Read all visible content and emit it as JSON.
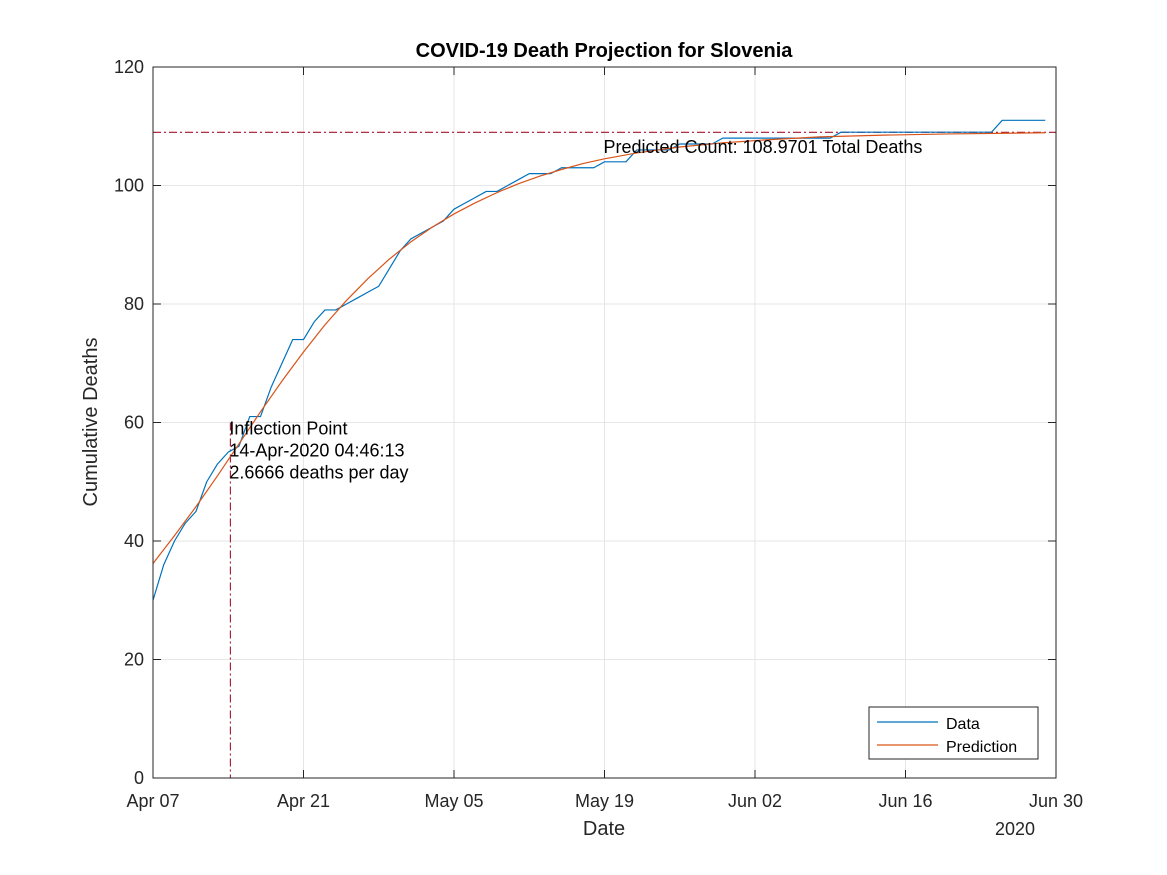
{
  "chart_data": {
    "type": "line",
    "title": "COVID-19 Death Projection for Slovenia",
    "xlabel": "Date",
    "ylabel": "Cumulative Deaths",
    "year_label": "2020",
    "xlim": [
      "2020-04-07",
      "2020-06-30"
    ],
    "ylim": [
      0,
      120
    ],
    "grid": true,
    "legend_position": "bottom-right",
    "x_ticks": [
      {
        "date": "2020-04-07",
        "label": "Apr 07"
      },
      {
        "date": "2020-04-21",
        "label": "Apr 21"
      },
      {
        "date": "2020-05-05",
        "label": "May 05"
      },
      {
        "date": "2020-05-19",
        "label": "May 19"
      },
      {
        "date": "2020-06-02",
        "label": "Jun 02"
      },
      {
        "date": "2020-06-16",
        "label": "Jun 16"
      },
      {
        "date": "2020-06-30",
        "label": "Jun 30"
      }
    ],
    "y_ticks": [
      0,
      20,
      40,
      60,
      80,
      100,
      120
    ],
    "series": [
      {
        "name": "Data",
        "color": "#0072BD",
        "style": "step",
        "points": [
          [
            "2020-04-07",
            30
          ],
          [
            "2020-04-08",
            36
          ],
          [
            "2020-04-09",
            40
          ],
          [
            "2020-04-10",
            43
          ],
          [
            "2020-04-11",
            45
          ],
          [
            "2020-04-12",
            50
          ],
          [
            "2020-04-13",
            53
          ],
          [
            "2020-04-14",
            55
          ],
          [
            "2020-04-15",
            56
          ],
          [
            "2020-04-16",
            61
          ],
          [
            "2020-04-17",
            61
          ],
          [
            "2020-04-18",
            66
          ],
          [
            "2020-04-19",
            70
          ],
          [
            "2020-04-20",
            74
          ],
          [
            "2020-04-21",
            74
          ],
          [
            "2020-04-22",
            77
          ],
          [
            "2020-04-23",
            79
          ],
          [
            "2020-04-24",
            79
          ],
          [
            "2020-04-25",
            80
          ],
          [
            "2020-04-26",
            81
          ],
          [
            "2020-04-27",
            82
          ],
          [
            "2020-04-28",
            83
          ],
          [
            "2020-04-29",
            86
          ],
          [
            "2020-04-30",
            89
          ],
          [
            "2020-05-01",
            91
          ],
          [
            "2020-05-02",
            92
          ],
          [
            "2020-05-03",
            93
          ],
          [
            "2020-05-04",
            94
          ],
          [
            "2020-05-05",
            96
          ],
          [
            "2020-05-06",
            97
          ],
          [
            "2020-05-07",
            98
          ],
          [
            "2020-05-08",
            99
          ],
          [
            "2020-05-09",
            99
          ],
          [
            "2020-05-10",
            100
          ],
          [
            "2020-05-11",
            101
          ],
          [
            "2020-05-12",
            102
          ],
          [
            "2020-05-13",
            102
          ],
          [
            "2020-05-14",
            102
          ],
          [
            "2020-05-15",
            103
          ],
          [
            "2020-05-16",
            103
          ],
          [
            "2020-05-17",
            103
          ],
          [
            "2020-05-18",
            103
          ],
          [
            "2020-05-19",
            104
          ],
          [
            "2020-05-20",
            104
          ],
          [
            "2020-05-21",
            104
          ],
          [
            "2020-05-22",
            106
          ],
          [
            "2020-05-23",
            106
          ],
          [
            "2020-05-24",
            106
          ],
          [
            "2020-05-25",
            106
          ],
          [
            "2020-05-26",
            107
          ],
          [
            "2020-05-27",
            107
          ],
          [
            "2020-05-28",
            107
          ],
          [
            "2020-05-29",
            107
          ],
          [
            "2020-05-30",
            108
          ],
          [
            "2020-05-31",
            108
          ],
          [
            "2020-06-01",
            108
          ],
          [
            "2020-06-02",
            108
          ],
          [
            "2020-06-03",
            108
          ],
          [
            "2020-06-04",
            108
          ],
          [
            "2020-06-05",
            108
          ],
          [
            "2020-06-06",
            108
          ],
          [
            "2020-06-07",
            108
          ],
          [
            "2020-06-08",
            108
          ],
          [
            "2020-06-09",
            108
          ],
          [
            "2020-06-10",
            109
          ],
          [
            "2020-06-11",
            109
          ],
          [
            "2020-06-12",
            109
          ],
          [
            "2020-06-13",
            109
          ],
          [
            "2020-06-14",
            109
          ],
          [
            "2020-06-15",
            109
          ],
          [
            "2020-06-16",
            109
          ],
          [
            "2020-06-17",
            109
          ],
          [
            "2020-06-18",
            109
          ],
          [
            "2020-06-19",
            109
          ],
          [
            "2020-06-20",
            109
          ],
          [
            "2020-06-21",
            109
          ],
          [
            "2020-06-22",
            109
          ],
          [
            "2020-06-23",
            109
          ],
          [
            "2020-06-24",
            109
          ],
          [
            "2020-06-25",
            111
          ],
          [
            "2020-06-26",
            111
          ],
          [
            "2020-06-27",
            111
          ],
          [
            "2020-06-28",
            111
          ],
          [
            "2020-06-29",
            111
          ]
        ]
      },
      {
        "name": "Prediction",
        "color": "#D95319",
        "style": "smooth",
        "points": [
          [
            "2020-04-07",
            36.2
          ],
          [
            "2020-04-09",
            40.9
          ],
          [
            "2020-04-11",
            45.8
          ],
          [
            "2020-04-13",
            51.0
          ],
          [
            "2020-04-15",
            56.4
          ],
          [
            "2020-04-17",
            61.8
          ],
          [
            "2020-04-19",
            67.0
          ],
          [
            "2020-04-21",
            71.9
          ],
          [
            "2020-04-23",
            76.5
          ],
          [
            "2020-04-25",
            80.6
          ],
          [
            "2020-04-27",
            84.3
          ],
          [
            "2020-04-29",
            87.6
          ],
          [
            "2020-05-01",
            90.5
          ],
          [
            "2020-05-03",
            93.0
          ],
          [
            "2020-05-05",
            95.2
          ],
          [
            "2020-05-07",
            97.1
          ],
          [
            "2020-05-09",
            98.8
          ],
          [
            "2020-05-11",
            100.3
          ],
          [
            "2020-05-13",
            101.6
          ],
          [
            "2020-05-15",
            102.7
          ],
          [
            "2020-05-17",
            103.7
          ],
          [
            "2020-05-19",
            104.5
          ],
          [
            "2020-05-22",
            105.5
          ],
          [
            "2020-05-26",
            106.5
          ],
          [
            "2020-05-30",
            107.2
          ],
          [
            "2020-06-03",
            107.7
          ],
          [
            "2020-06-08",
            108.2
          ],
          [
            "2020-06-14",
            108.5
          ],
          [
            "2020-06-20",
            108.7
          ],
          [
            "2020-06-29",
            108.9
          ]
        ]
      }
    ],
    "reference_lines": [
      {
        "type": "horizontal",
        "value": 108.9701,
        "color": "#A2142F",
        "style": "dash-dot"
      },
      {
        "type": "vertical",
        "date": "2020-04-14T04:46:13",
        "ymax": 60,
        "color": "#A2142F",
        "style": "dash-dot"
      }
    ],
    "annotations": [
      {
        "name": "predicted-count",
        "date": "2020-05-19",
        "y": 105.5,
        "lines": [
          "Predicted Count: 108.9701 Total Deaths"
        ]
      },
      {
        "name": "inflection-point",
        "date": "2020-04-14T04:46:13",
        "y": 58,
        "lines": [
          "Inflection Point",
          "14-Apr-2020 04:46:13",
          "2.6666 deaths per day"
        ]
      }
    ]
  }
}
